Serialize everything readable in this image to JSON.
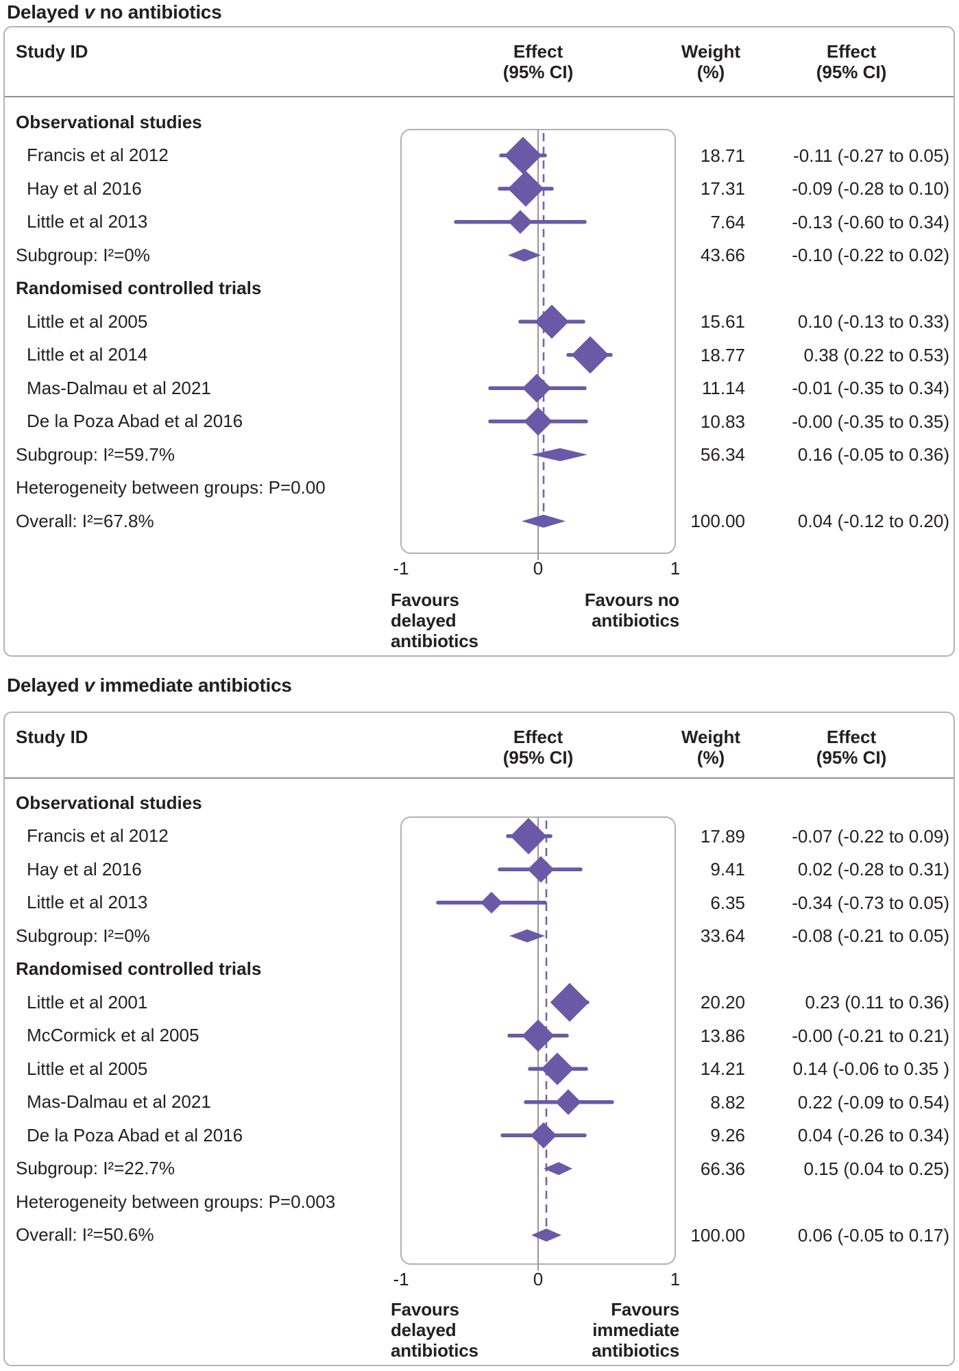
{
  "page": {
    "background": "#ffffff",
    "text_color": "#231f20",
    "accent_color": "#6a59a7",
    "dashed_line_color": "#7464ae",
    "zero_line_color": "#9b9b9b",
    "box_border_color": "#b1b1b1",
    "panel_border_color": "#b3b3b3",
    "separator_color": "#8f8f8f"
  },
  "chart_data": [
    {
      "type": "forest",
      "title": {
        "pre": "Delayed ",
        "v": "v",
        "post": " no antibiotics"
      },
      "header": {
        "study": "Study ID",
        "effect": [
          "Effect",
          "(95% CI)"
        ],
        "weight": [
          "Weight",
          "(%)"
        ],
        "effect_ci": [
          "Effect",
          "(95% CI)"
        ]
      },
      "axis": {
        "min": -1,
        "max": 1,
        "tick_labels": [
          "-1",
          "0",
          "1"
        ],
        "zero_line": 0,
        "overall_dashed_line": 0.04
      },
      "favours_left": [
        "Favours",
        "delayed",
        "antibiotics"
      ],
      "favours_right": [
        "Favours no",
        "antibiotics"
      ],
      "rows": [
        {
          "type": "group",
          "label": "Observational studies"
        },
        {
          "type": "study",
          "label": "Francis et al 2012",
          "effect": -0.11,
          "ci": [
            -0.27,
            0.05
          ],
          "weight": 18.71,
          "weight_text": "18.71",
          "effect_text": "-0.11 (-0.27 to 0.05)"
        },
        {
          "type": "study",
          "label": "Hay et al 2016",
          "effect": -0.09,
          "ci": [
            -0.28,
            0.1
          ],
          "weight": 17.31,
          "weight_text": "17.31",
          "effect_text": "-0.09 (-0.28 to 0.10)"
        },
        {
          "type": "study",
          "label": "Little et al 2013",
          "effect": -0.13,
          "ci": [
            -0.6,
            0.34
          ],
          "weight": 7.64,
          "weight_text": "7.64",
          "effect_text": "-0.13 (-0.60 to 0.34)"
        },
        {
          "type": "subgroup",
          "label": "Subgroup: I²=0%",
          "effect": -0.1,
          "ci": [
            -0.22,
            0.02
          ],
          "weight_text": "43.66",
          "effect_text": "-0.10 (-0.22 to 0.02)"
        },
        {
          "type": "group",
          "label": "Randomised controlled trials"
        },
        {
          "type": "study",
          "label": "Little et al 2005",
          "effect": 0.1,
          "ci": [
            -0.13,
            0.33
          ],
          "weight": 15.61,
          "weight_text": "15.61",
          "effect_text": "0.10 (-0.13 to 0.33)"
        },
        {
          "type": "study",
          "label": "Little et al 2014",
          "effect": 0.38,
          "ci": [
            0.22,
            0.53
          ],
          "weight": 18.77,
          "weight_text": "18.77",
          "effect_text": "0.38 (0.22 to 0.53)"
        },
        {
          "type": "study",
          "label": "Mas-Dalmau et al 2021",
          "effect": -0.01,
          "ci": [
            -0.35,
            0.34
          ],
          "weight": 11.14,
          "weight_text": "11.14",
          "effect_text": "-0.01 (-0.35 to 0.34)"
        },
        {
          "type": "study",
          "label": "De la Poza Abad et al 2016",
          "effect": -0.0,
          "ci": [
            -0.35,
            0.35
          ],
          "weight": 10.83,
          "weight_text": "10.83",
          "effect_text": "-0.00 (-0.35 to 0.35)"
        },
        {
          "type": "subgroup",
          "label": "Subgroup: I²=59.7%",
          "effect": 0.16,
          "ci": [
            -0.05,
            0.36
          ],
          "weight_text": "56.34",
          "effect_text": "0.16 (-0.05 to 0.36)"
        },
        {
          "type": "note",
          "label": "Heterogeneity between groups: P=0.00"
        },
        {
          "type": "overall",
          "label": "Overall: I²=67.8%",
          "effect": 0.04,
          "ci": [
            -0.12,
            0.2
          ],
          "weight_text": "100.00",
          "effect_text": "0.04 (-0.12 to 0.20)"
        }
      ]
    },
    {
      "type": "forest",
      "title": {
        "pre": "Delayed ",
        "v": "v",
        "post": " immediate antibiotics"
      },
      "header": {
        "study": "Study ID",
        "effect": [
          "Effect",
          "(95% CI)"
        ],
        "weight": [
          "Weight",
          "(%)"
        ],
        "effect_ci": [
          "Effect",
          "(95% CI)"
        ]
      },
      "axis": {
        "min": -1,
        "max": 1,
        "tick_labels": [
          "-1",
          "0",
          "1"
        ],
        "zero_line": 0,
        "overall_dashed_line": 0.06
      },
      "favours_left": [
        "Favours",
        "delayed",
        "antibiotics"
      ],
      "favours_right": [
        "Favours",
        "immediate",
        "antibiotics"
      ],
      "rows": [
        {
          "type": "group",
          "label": "Observational studies"
        },
        {
          "type": "study",
          "label": "Francis et al 2012",
          "effect": -0.07,
          "ci": [
            -0.22,
            0.09
          ],
          "weight": 17.89,
          "weight_text": "17.89",
          "effect_text": "-0.07 (-0.22 to 0.09)"
        },
        {
          "type": "study",
          "label": "Hay et al 2016",
          "effect": 0.02,
          "ci": [
            -0.28,
            0.31
          ],
          "weight": 9.41,
          "weight_text": "9.41",
          "effect_text": "0.02 (-0.28 to 0.31)"
        },
        {
          "type": "study",
          "label": "Little et al 2013",
          "effect": -0.34,
          "ci": [
            -0.73,
            0.05
          ],
          "weight": 6.35,
          "weight_text": "6.35",
          "effect_text": "-0.34 (-0.73 to 0.05)"
        },
        {
          "type": "subgroup",
          "label": "Subgroup: I²=0%",
          "effect": -0.08,
          "ci": [
            -0.21,
            0.05
          ],
          "weight_text": "33.64",
          "effect_text": "-0.08 (-0.21 to 0.05)"
        },
        {
          "type": "group",
          "label": "Randomised controlled trials"
        },
        {
          "type": "study",
          "label": "Little et al 2001",
          "effect": 0.23,
          "ci": [
            0.11,
            0.36
          ],
          "weight": 20.2,
          "weight_text": "20.20",
          "effect_text": "0.23 (0.11 to 0.36)"
        },
        {
          "type": "study",
          "label": "McCormick et al 2005",
          "effect": -0.0,
          "ci": [
            -0.21,
            0.21
          ],
          "weight": 13.86,
          "weight_text": "13.86",
          "effect_text": "-0.00 (-0.21 to 0.21)"
        },
        {
          "type": "study",
          "label": "Little et al 2005",
          "effect": 0.14,
          "ci": [
            -0.06,
            0.35
          ],
          "weight": 14.21,
          "weight_text": "14.21",
          "effect_text": "0.14 (-0.06 to 0.35 )"
        },
        {
          "type": "study",
          "label": "Mas-Dalmau et al 2021",
          "effect": 0.22,
          "ci": [
            -0.09,
            0.54
          ],
          "weight": 8.82,
          "weight_text": "8.82",
          "effect_text": "0.22 (-0.09 to 0.54)"
        },
        {
          "type": "study",
          "label": "De la Poza Abad et al 2016",
          "effect": 0.04,
          "ci": [
            -0.26,
            0.34
          ],
          "weight": 9.26,
          "weight_text": "9.26",
          "effect_text": "0.04 (-0.26 to 0.34)"
        },
        {
          "type": "subgroup",
          "label": "Subgroup: I²=22.7%",
          "effect": 0.15,
          "ci": [
            0.04,
            0.25
          ],
          "weight_text": "66.36",
          "effect_text": "0.15 (0.04 to 0.25)"
        },
        {
          "type": "note",
          "label": "Heterogeneity between groups: P=0.003"
        },
        {
          "type": "overall",
          "label": "Overall: I²=50.6%",
          "effect": 0.06,
          "ci": [
            -0.05,
            0.17
          ],
          "weight_text": "100.00",
          "effect_text": "0.06 (-0.05 to 0.17)"
        }
      ]
    }
  ]
}
